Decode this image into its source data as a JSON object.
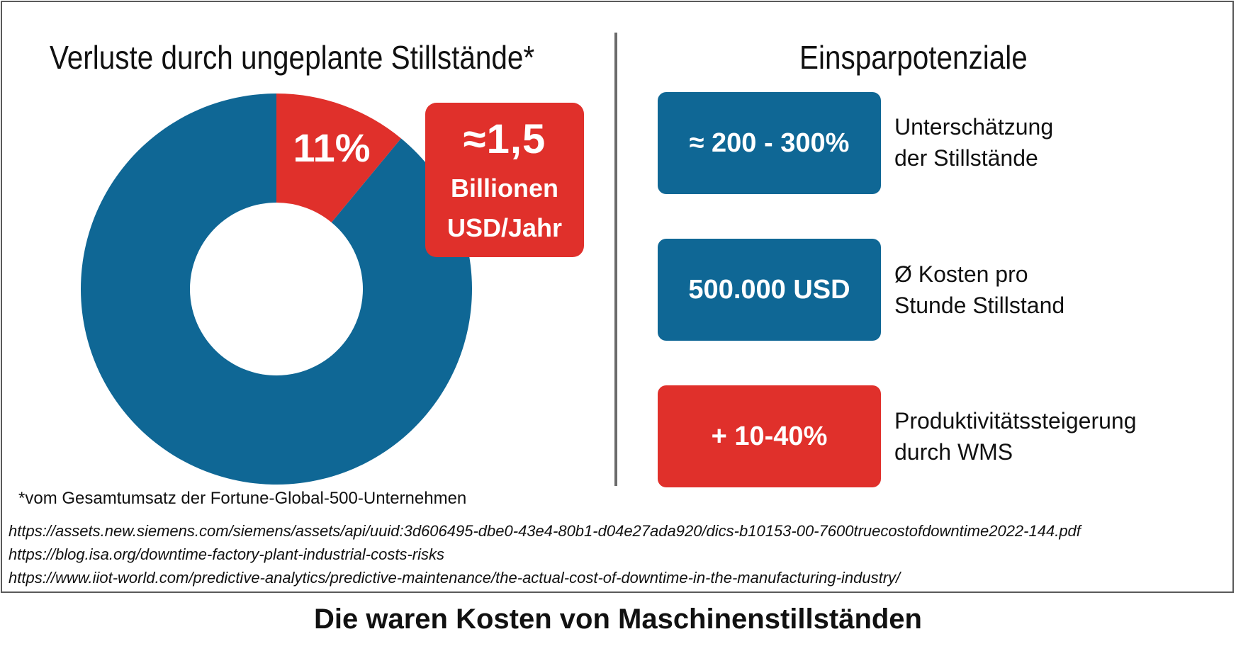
{
  "left_title": "Verluste durch ungeplante Stillstände*",
  "right_title": "Einsparpotenziale",
  "chart_data": {
    "type": "pie",
    "slices": [
      {
        "label": "11%",
        "value": 11,
        "color": "#e0302b"
      },
      {
        "label": "",
        "value": 89,
        "color": "#0f6795"
      }
    ]
  },
  "callout": {
    "value": "≈1,5",
    "unit_line1": "Billionen",
    "unit_line2": "USD/Jahr"
  },
  "stats": [
    {
      "value": "≈ 200 - 300%",
      "desc": [
        "Unterschätzung",
        "der Stillstände"
      ],
      "color": "#0f6795"
    },
    {
      "value": "500.000 USD",
      "desc": [
        "Ø Kosten pro",
        "Stunde Stillstand"
      ],
      "color": "#0f6795"
    },
    {
      "value": "+ 10-40%",
      "desc": [
        "Produktivitätssteigerung",
        "durch WMS"
      ],
      "color": "#e0302b"
    }
  ],
  "footnote": "*vom Gesamtumsatz der  Fortune-Global-500-Unternehmen",
  "sources": [
    "https://assets.new.siemens.com/siemens/assets/api/uuid:3d606495-dbe0-43e4-80b1-d04e27ada920/dics-b10153-00-7600truecostofdowntime2022-144.pdf",
    "https://blog.isa.org/downtime-factory-plant-industrial-costs-risks",
    "https://www.iiot-world.com/predictive-analytics/predictive-maintenance/the-actual-cost-of-downtime-in-the-manufacturing-industry/"
  ],
  "caption": "Die waren Kosten von Maschinenstillständen"
}
